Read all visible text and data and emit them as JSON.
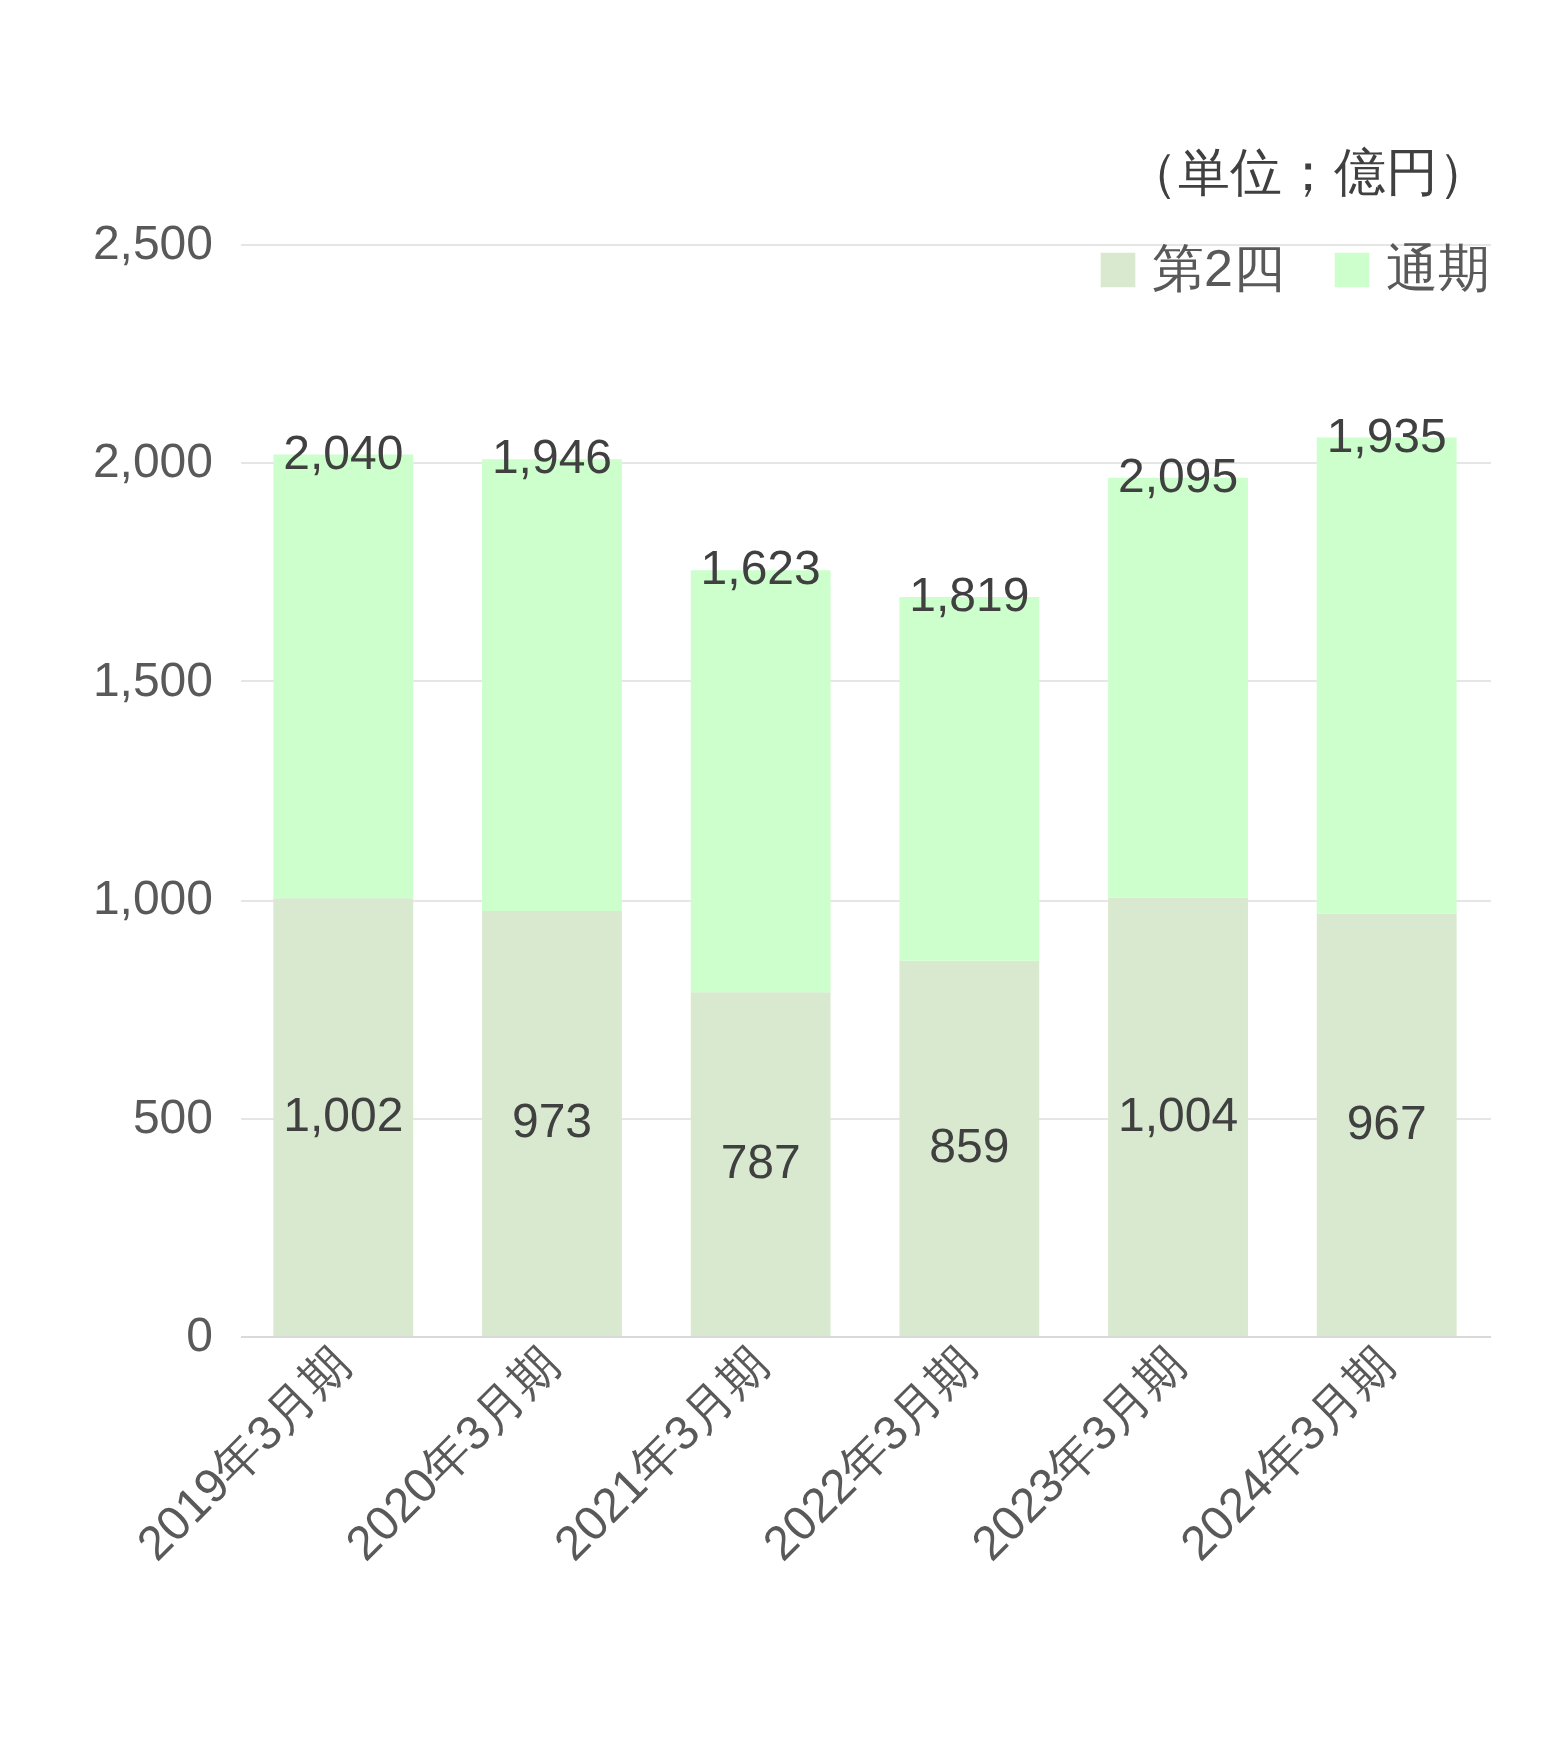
{
  "chart_data": {
    "type": "bar",
    "stacked": true,
    "categories": [
      "2019年3月期",
      "2020年3月期",
      "2021年3月期",
      "2022年3月期",
      "2023年3月期",
      "2024年3月期"
    ],
    "series": [
      {
        "name": "第2四",
        "color": "#d8e9cf",
        "values": [
          1002,
          973,
          787,
          859,
          1004,
          967
        ],
        "value_labels": [
          "1,002",
          "973",
          "787",
          "859",
          "1,004",
          "967"
        ]
      },
      {
        "name": "通期",
        "color": "#ccffcc",
        "values": [
          1016,
          1034,
          966,
          833,
          961,
          1090
        ]
      }
    ],
    "ylim": [
      0,
      2500
    ],
    "yticks": [
      0,
      500,
      {
        "value": 1000,
        "label": "1,000"
      },
      {
        "value": 1500,
        "label": "1,500"
      },
      {
        "value": 2000,
        "label": "2,000"
      },
      {
        "value": 2500,
        "label": "2,500"
      }
    ],
    "grid": "y",
    "legend": "top right",
    "annotations": [
      "（単位；億円）",
      {
        "text": "2,040",
        "x": "2019年3月期",
        "y": 2018
      },
      {
        "text": "1,946",
        "x": "2020年3月期",
        "y": 2007
      },
      {
        "text": "1,623",
        "x": "2021年3月期",
        "y": 1753
      },
      {
        "text": "1,819",
        "x": "2022年3月期",
        "y": 1692
      },
      {
        "text": "2,095",
        "x": "2023年3月期",
        "y": 1965
      },
      {
        "text": "1,935",
        "x": "2024年3月期",
        "y": 2057
      }
    ]
  }
}
